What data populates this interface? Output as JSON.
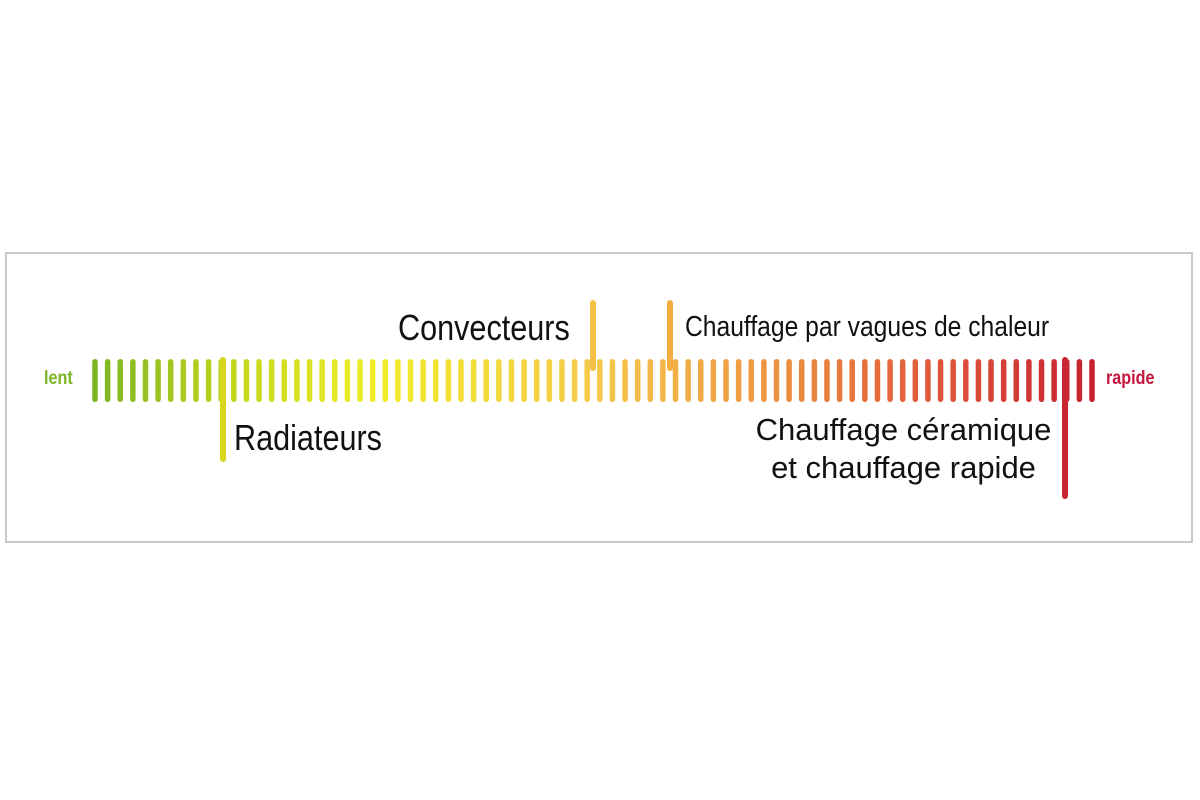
{
  "scale": {
    "start_label": "lent",
    "end_label": "rapide",
    "start_color": "#7cb524",
    "end_color": "#c4163c",
    "tick_count": 80,
    "colors": {
      "green": "#7cb524",
      "yellow_green": "#c3d61c",
      "yellow": "#f0ec28",
      "light_orange": "#f5c94a",
      "orange": "#ee9a42",
      "orange_red": "#e2603c",
      "red": "#c7202f"
    }
  },
  "markers": [
    {
      "id": "radiateurs",
      "label": "Radiateurs",
      "direction": "down",
      "color": "#d7d51c"
    },
    {
      "id": "convecteurs",
      "label": "Convecteurs",
      "direction": "up",
      "color": "#f4c048"
    },
    {
      "id": "vagues",
      "label": "Chauffage par vagues de chaleur",
      "direction": "up",
      "color": "#f2ae40"
    },
    {
      "id": "ceramique",
      "label_line1": "Chauffage céramique",
      "label_line2": "et chauffage rapide",
      "direction": "down",
      "color": "#c82630"
    }
  ]
}
